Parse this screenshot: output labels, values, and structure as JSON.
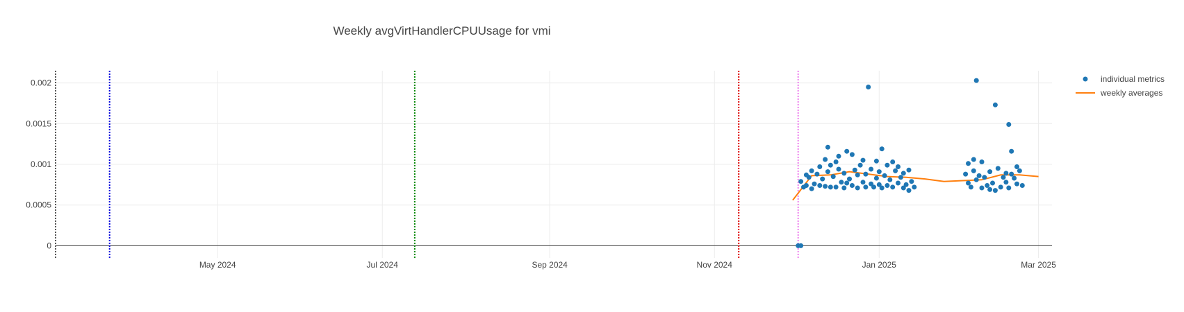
{
  "chart_data": {
    "type": "scatter",
    "title": "Weekly avgVirtHandlerCPUUsage for vmi",
    "xlabel": "",
    "ylabel": "",
    "xlim": [
      "2024-03-02",
      "2025-03-06"
    ],
    "ylim": [
      -0.00015,
      0.00215
    ],
    "x_ticks": [
      {
        "date": "2024-05-01",
        "label": "May 2024"
      },
      {
        "date": "2024-07-01",
        "label": "Jul 2024"
      },
      {
        "date": "2024-09-01",
        "label": "Sep 2024"
      },
      {
        "date": "2024-11-01",
        "label": "Nov 2024"
      },
      {
        "date": "2025-01-01",
        "label": "Jan 2025"
      },
      {
        "date": "2025-03-01",
        "label": "Mar 2025"
      }
    ],
    "y_ticks": [
      {
        "value": 0,
        "label": "0"
      },
      {
        "value": 0.0005,
        "label": "0.0005"
      },
      {
        "value": 0.001,
        "label": "0.001"
      },
      {
        "value": 0.0015,
        "label": "0.0015"
      },
      {
        "value": 0.002,
        "label": "0.002"
      }
    ],
    "grid": true,
    "legend_position": "top-right",
    "vertical_lines": [
      {
        "date": "2024-03-02",
        "color": "#555555"
      },
      {
        "date": "2024-03-22",
        "color": "#0000dd"
      },
      {
        "date": "2024-07-13",
        "color": "#008800"
      },
      {
        "date": "2024-11-10",
        "color": "#dd0000"
      },
      {
        "date": "2024-12-02",
        "color": "#ee82ee"
      }
    ],
    "series": [
      {
        "name": "individual metrics",
        "mode": "markers",
        "color": "#1f77b4",
        "points": [
          [
            "2024-12-02",
            0.0
          ],
          [
            "2024-12-03",
            0.0
          ],
          [
            "2024-12-03",
            0.00079
          ],
          [
            "2024-12-04",
            0.00072
          ],
          [
            "2024-12-05",
            0.00087
          ],
          [
            "2024-12-05",
            0.00074
          ],
          [
            "2024-12-06",
            0.00084
          ],
          [
            "2024-12-07",
            0.0007
          ],
          [
            "2024-12-07",
            0.00092
          ],
          [
            "2024-12-08",
            0.00076
          ],
          [
            "2024-12-09",
            0.00088
          ],
          [
            "2024-12-10",
            0.00097
          ],
          [
            "2024-12-10",
            0.00074
          ],
          [
            "2024-12-11",
            0.00082
          ],
          [
            "2024-12-12",
            0.00106
          ],
          [
            "2024-12-12",
            0.00073
          ],
          [
            "2024-12-13",
            0.00091
          ],
          [
            "2024-12-13",
            0.00121
          ],
          [
            "2024-12-14",
            0.00072
          ],
          [
            "2024-12-14",
            0.00099
          ],
          [
            "2024-12-15",
            0.00085
          ],
          [
            "2024-12-16",
            0.00103
          ],
          [
            "2024-12-16",
            0.00072
          ],
          [
            "2024-12-17",
            0.00094
          ],
          [
            "2024-12-17",
            0.0011
          ],
          [
            "2024-12-18",
            0.00078
          ],
          [
            "2024-12-19",
            0.00089
          ],
          [
            "2024-12-19",
            0.00071
          ],
          [
            "2024-12-20",
            0.00116
          ],
          [
            "2024-12-20",
            0.00077
          ],
          [
            "2024-12-21",
            0.00082
          ],
          [
            "2024-12-22",
            0.00112
          ],
          [
            "2024-12-22",
            0.00074
          ],
          [
            "2024-12-23",
            0.00093
          ],
          [
            "2024-12-24",
            0.00071
          ],
          [
            "2024-12-24",
            0.00087
          ],
          [
            "2024-12-25",
            0.00099
          ],
          [
            "2024-12-26",
            0.00078
          ],
          [
            "2024-12-26",
            0.00105
          ],
          [
            "2024-12-27",
            0.00072
          ],
          [
            "2024-12-27",
            0.00088
          ],
          [
            "2024-12-28",
            0.00195
          ],
          [
            "2024-12-29",
            0.00076
          ],
          [
            "2024-12-29",
            0.00094
          ],
          [
            "2024-12-30",
            0.00072
          ],
          [
            "2024-12-31",
            0.00104
          ],
          [
            "2024-12-31",
            0.00083
          ],
          [
            "2025-01-01",
            0.00075
          ],
          [
            "2025-01-01",
            0.00091
          ],
          [
            "2025-01-02",
            0.00119
          ],
          [
            "2025-01-02",
            0.00071
          ],
          [
            "2025-01-03",
            0.00086
          ],
          [
            "2025-01-04",
            0.00099
          ],
          [
            "2025-01-04",
            0.00074
          ],
          [
            "2025-01-05",
            0.00081
          ],
          [
            "2025-01-06",
            0.00103
          ],
          [
            "2025-01-06",
            0.00072
          ],
          [
            "2025-01-07",
            0.00092
          ],
          [
            "2025-01-08",
            0.00077
          ],
          [
            "2025-01-08",
            0.00097
          ],
          [
            "2025-01-09",
            0.00084
          ],
          [
            "2025-01-10",
            0.00071
          ],
          [
            "2025-01-10",
            0.00089
          ],
          [
            "2025-01-11",
            0.00075
          ],
          [
            "2025-01-12",
            0.00093
          ],
          [
            "2025-01-12",
            0.00068
          ],
          [
            "2025-01-13",
            0.00079
          ],
          [
            "2025-01-14",
            0.00072
          ],
          [
            "2025-02-02",
            0.00088
          ],
          [
            "2025-02-03",
            0.00101
          ],
          [
            "2025-02-03",
            0.00077
          ],
          [
            "2025-02-04",
            0.00072
          ],
          [
            "2025-02-05",
            0.00092
          ],
          [
            "2025-02-05",
            0.00106
          ],
          [
            "2025-02-06",
            0.00203
          ],
          [
            "2025-02-06",
            0.00081
          ],
          [
            "2025-02-07",
            0.00086
          ],
          [
            "2025-02-08",
            0.00071
          ],
          [
            "2025-02-08",
            0.00103
          ],
          [
            "2025-02-09",
            0.00084
          ],
          [
            "2025-02-10",
            0.00074
          ],
          [
            "2025-02-11",
            0.00069
          ],
          [
            "2025-02-11",
            0.00091
          ],
          [
            "2025-02-12",
            0.00077
          ],
          [
            "2025-02-13",
            0.00173
          ],
          [
            "2025-02-13",
            0.00068
          ],
          [
            "2025-02-14",
            0.00095
          ],
          [
            "2025-02-15",
            0.00072
          ],
          [
            "2025-02-16",
            0.00084
          ],
          [
            "2025-02-17",
            0.00089
          ],
          [
            "2025-02-17",
            0.00078
          ],
          [
            "2025-02-18",
            0.00149
          ],
          [
            "2025-02-18",
            0.00071
          ],
          [
            "2025-02-19",
            0.00116
          ],
          [
            "2025-02-19",
            0.00088
          ],
          [
            "2025-02-20",
            0.00083
          ],
          [
            "2025-02-21",
            0.00097
          ],
          [
            "2025-02-21",
            0.00076
          ],
          [
            "2025-02-22",
            0.00092
          ],
          [
            "2025-02-23",
            0.00074
          ]
        ]
      },
      {
        "name": "weekly averages",
        "mode": "lines",
        "color": "#ff7f0e",
        "points": [
          [
            "2024-11-30",
            0.00056
          ],
          [
            "2024-12-07",
            0.00086
          ],
          [
            "2024-12-14",
            0.00087
          ],
          [
            "2024-12-21",
            0.00091
          ],
          [
            "2024-12-28",
            0.00088
          ],
          [
            "2025-01-04",
            0.00085
          ],
          [
            "2025-01-11",
            0.00084
          ],
          [
            "2025-01-18",
            0.00082
          ],
          [
            "2025-01-25",
            0.00079
          ],
          [
            "2025-02-01",
            0.0008
          ],
          [
            "2025-02-08",
            0.00081
          ],
          [
            "2025-02-15",
            0.00087
          ],
          [
            "2025-02-22",
            0.00087
          ],
          [
            "2025-03-01",
            0.00085
          ]
        ]
      }
    ]
  }
}
